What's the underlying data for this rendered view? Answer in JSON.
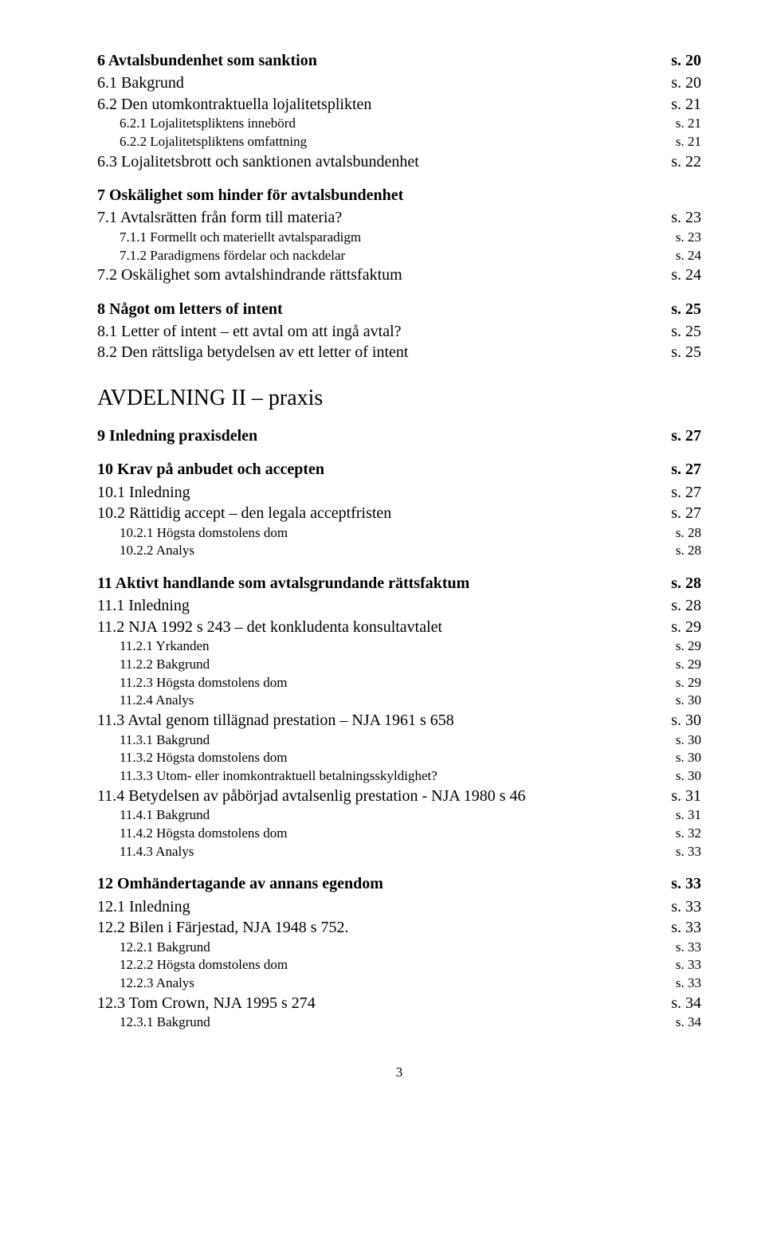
{
  "items": [
    {
      "level": "h1",
      "label": "6 Avtalsbundenhet som sanktion",
      "page": "s. 20"
    },
    {
      "level": "h2",
      "label": "6.1 Bakgrund",
      "page": "s. 20"
    },
    {
      "level": "h2",
      "label": "6.2 Den utomkontraktuella lojalitetsplikten",
      "page": "s. 21"
    },
    {
      "level": "h3",
      "label": "6.2.1 Lojalitetspliktens innebörd",
      "page": "s. 21"
    },
    {
      "level": "h3",
      "label": "6.2.2 Lojalitetspliktens omfattning",
      "page": "s. 21"
    },
    {
      "level": "h2",
      "label": "6.3 Lojalitetsbrott och sanktionen avtalsbundenhet",
      "page": "s. 22"
    },
    {
      "level": "h1",
      "gap": true,
      "label": "7 Oskälighet som hinder för avtalsbundenhet",
      "page": ""
    },
    {
      "level": "h2",
      "label": "7.1 Avtalsrätten från form till materia?",
      "page": "s. 23"
    },
    {
      "level": "h3",
      "label": "7.1.1 Formellt och materiellt avtalsparadigm",
      "page": "s. 23"
    },
    {
      "level": "h3",
      "label": "7.1.2 Paradigmens fördelar och nackdelar",
      "page": "s. 24"
    },
    {
      "level": "h2",
      "label": "7.2 Oskälighet som avtalshindrande rättsfaktum",
      "page": "s. 24"
    },
    {
      "level": "h1",
      "gap": true,
      "label": "8 Något om letters of intent",
      "page": "s. 25"
    },
    {
      "level": "h2",
      "label": "8.1 Letter of intent – ett avtal om att ingå avtal?",
      "page": "s. 25"
    },
    {
      "level": "h2",
      "label": "8.2 Den rättsliga betydelsen av ett letter of intent",
      "page": "s. 25"
    },
    {
      "level": "part",
      "label": "AVDELNING II – praxis",
      "page": ""
    },
    {
      "level": "h1",
      "label": "9 Inledning praxisdelen",
      "page": "s. 27"
    },
    {
      "level": "h1",
      "gap": true,
      "label": "10 Krav på anbudet och accepten",
      "page": "s. 27"
    },
    {
      "level": "h2",
      "label": "10.1 Inledning",
      "page": "s. 27"
    },
    {
      "level": "h2",
      "label": "10.2 Rättidig accept – den legala acceptfristen",
      "page": "s. 27"
    },
    {
      "level": "h3",
      "label": "10.2.1 Högsta domstolens dom",
      "page": "s. 28"
    },
    {
      "level": "h3",
      "label": "10.2.2 Analys",
      "page": "s. 28"
    },
    {
      "level": "h1",
      "gap": true,
      "label": "11 Aktivt handlande som avtalsgrundande rättsfaktum",
      "page": "s. 28"
    },
    {
      "level": "h2",
      "label": "11.1 Inledning",
      "page": "s. 28"
    },
    {
      "level": "h2",
      "label": "11.2 NJA 1992 s 243 – det konkludenta konsultavtalet",
      "page": "s. 29"
    },
    {
      "level": "h3",
      "label": "11.2.1 Yrkanden",
      "page": "s. 29"
    },
    {
      "level": "h3",
      "label": "11.2.2 Bakgrund",
      "page": "s. 29"
    },
    {
      "level": "h3",
      "label": "11.2.3 Högsta domstolens dom",
      "page": "s. 29"
    },
    {
      "level": "h3",
      "label": "11.2.4 Analys",
      "page": "s. 30"
    },
    {
      "level": "h2",
      "label": "11.3 Avtal genom tillägnad prestation – NJA 1961 s 658",
      "page": "s. 30"
    },
    {
      "level": "h3",
      "label": "11.3.1 Bakgrund",
      "page": "s. 30"
    },
    {
      "level": "h3",
      "label": "11.3.2 Högsta domstolens dom",
      "page": "s. 30"
    },
    {
      "level": "h3",
      "label": "11.3.3 Utom- eller inomkontraktuell betalningsskyldighet?",
      "page": "s. 30"
    },
    {
      "level": "h2",
      "label": "11.4 Betydelsen av påbörjad avtalsenlig prestation - NJA 1980 s 46",
      "page": "s. 31"
    },
    {
      "level": "h3",
      "label": "11.4.1 Bakgrund",
      "page": "s. 31"
    },
    {
      "level": "h3",
      "label": "11.4.2 Högsta domstolens dom",
      "page": "s. 32"
    },
    {
      "level": "h3",
      "label": "11.4.3 Analys",
      "page": "s. 33"
    },
    {
      "level": "h1",
      "gap": true,
      "label": "12 Omhändertagande av annans egendom",
      "page": "s. 33"
    },
    {
      "level": "h2",
      "label": "12.1 Inledning",
      "page": "s. 33"
    },
    {
      "level": "h2",
      "label": "12.2 Bilen i Färjestad, NJA 1948 s 752.",
      "page": "s. 33"
    },
    {
      "level": "h3",
      "label": "12.2.1 Bakgrund",
      "page": "s. 33"
    },
    {
      "level": "h3",
      "label": "12.2.2 Högsta domstolens dom",
      "page": "s. 33"
    },
    {
      "level": "h3",
      "label": "12.2.3 Analys",
      "page": "s. 33"
    },
    {
      "level": "h2",
      "label": "12.3 Tom Crown, NJA 1995 s 274",
      "page": "s. 34"
    },
    {
      "level": "h3",
      "label": "12.3.1 Bakgrund",
      "page": "s. 34"
    }
  ],
  "pageNumber": "3"
}
